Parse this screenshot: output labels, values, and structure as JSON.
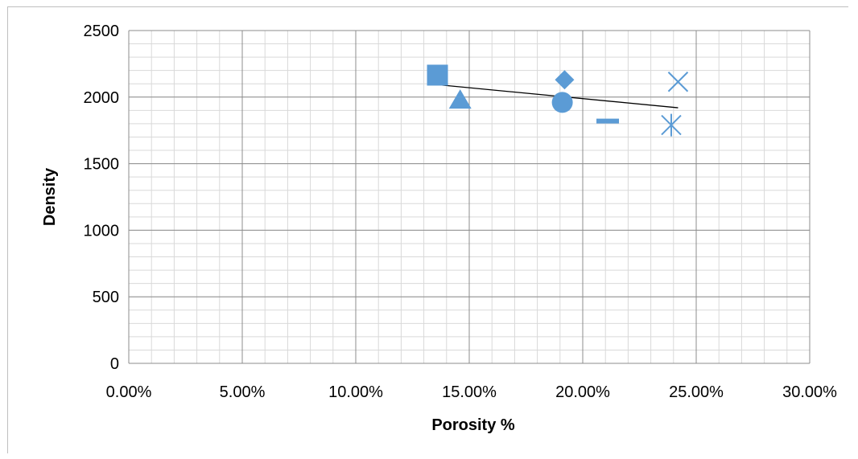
{
  "chart_data": {
    "type": "scatter",
    "title": "",
    "xlabel": "Porosity %",
    "ylabel": "Density",
    "xlim": [
      0,
      0.3
    ],
    "ylim": [
      0,
      2500
    ],
    "x_ticks": [
      0,
      0.05,
      0.1,
      0.15,
      0.2,
      0.25,
      0.3
    ],
    "x_tick_labels": [
      "0.00%",
      "5.00%",
      "10.00%",
      "15.00%",
      "20.00%",
      "25.00%",
      "30.00%"
    ],
    "y_ticks": [
      0,
      500,
      1000,
      1500,
      2000,
      2500
    ],
    "y_tick_labels": [
      "0",
      "500",
      "1000",
      "1500",
      "2000",
      "2500"
    ],
    "grid": true,
    "legend": "none",
    "marker_color": "#5b9bd5",
    "points": [
      {
        "x": 0.136,
        "y": 2165,
        "marker": "square"
      },
      {
        "x": 0.146,
        "y": 1980,
        "marker": "triangle"
      },
      {
        "x": 0.192,
        "y": 2130,
        "marker": "diamond"
      },
      {
        "x": 0.191,
        "y": 1960,
        "marker": "circle"
      },
      {
        "x": 0.211,
        "y": 1820,
        "marker": "dash"
      },
      {
        "x": 0.242,
        "y": 2115,
        "marker": "x"
      },
      {
        "x": 0.239,
        "y": 1790,
        "marker": "star"
      }
    ],
    "trendline": {
      "x": [
        0.138,
        0.242
      ],
      "y": [
        2090,
        1920
      ],
      "color": "#000000"
    }
  }
}
